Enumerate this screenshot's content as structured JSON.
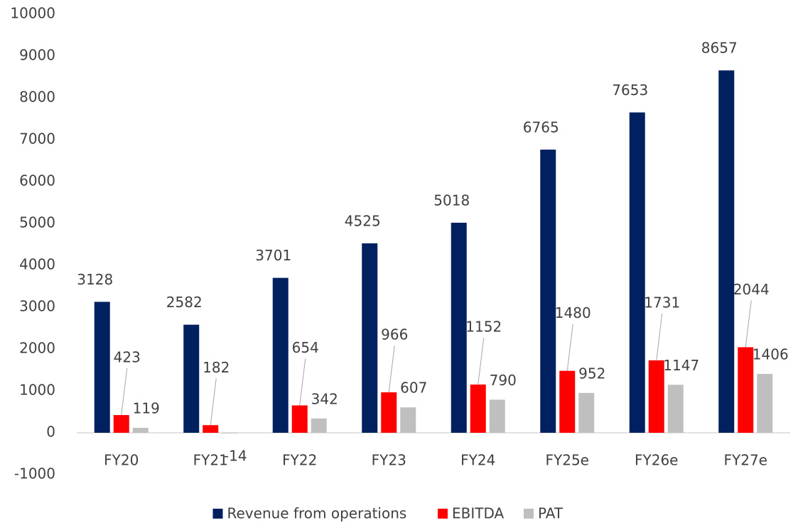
{
  "chart_data": {
    "type": "bar",
    "categories": [
      "FY20",
      "FY21",
      "FY22",
      "FY23",
      "FY24",
      "FY25e",
      "FY26e",
      "FY27e"
    ],
    "series": [
      {
        "name": "Revenue from operations",
        "color": "#002060",
        "values": [
          3128,
          2582,
          3701,
          4525,
          5018,
          6765,
          7653,
          8657
        ]
      },
      {
        "name": "EBITDA",
        "color": "#ff0000",
        "values": [
          423,
          182,
          654,
          966,
          1152,
          1480,
          1731,
          2044
        ]
      },
      {
        "name": "PAT",
        "color": "#bfbfbf",
        "values": [
          119,
          -14,
          342,
          607,
          790,
          952,
          1147,
          1406
        ]
      }
    ],
    "ylim": [
      -1000,
      10000
    ],
    "yticks": [
      -1000,
      0,
      1000,
      2000,
      3000,
      4000,
      5000,
      6000,
      7000,
      8000,
      9000,
      10000
    ],
    "grid": false,
    "legend": "bottom"
  }
}
